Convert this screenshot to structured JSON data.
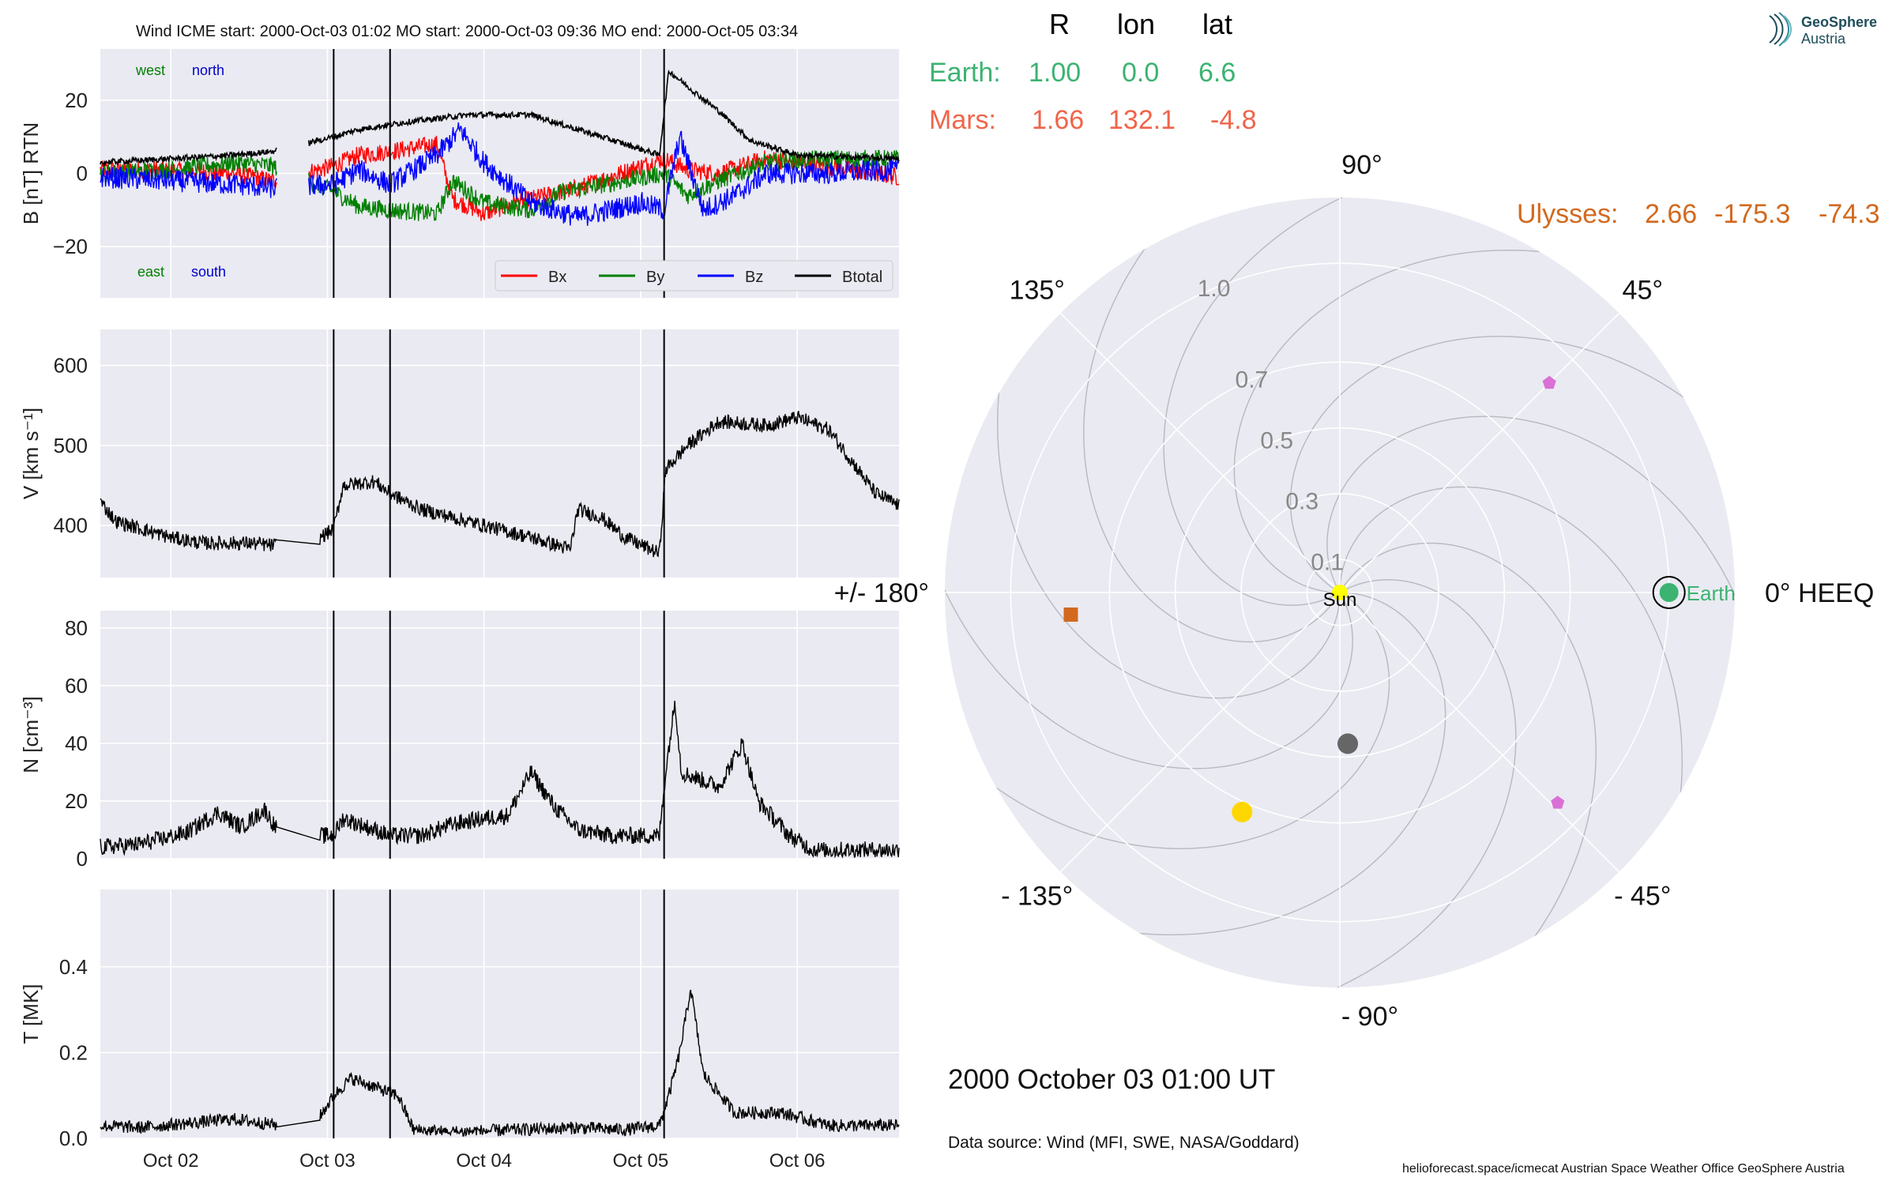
{
  "logo": {
    "line1": "GeoSphere",
    "line2": "Austria"
  },
  "header_text": "Wind    ICME start: 2000-Oct-03 01:02   MO start: 2000-Oct-03 09:36   MO end: 2000-Oct-05 03:34",
  "footer": {
    "date": "2000 October 03  01:00 UT",
    "source": "Data source: Wind (MFI, SWE, NASA/Goddard)",
    "credits": "helioforecast.space/icmecat   Austrian Space Weather Office   GeoSphere Austria"
  },
  "position_table": {
    "headers": [
      "R",
      "lon",
      "lat"
    ],
    "rows": [
      {
        "name": "Earth:",
        "r": "1.00",
        "lon": "0.0",
        "lat": "6.6",
        "color": "#3cb371"
      },
      {
        "name": "Mars:",
        "r": "1.66",
        "lon": "132.1",
        "lat": "-4.8",
        "color": "#f0654a"
      }
    ],
    "ulysses": {
      "name": "Ulysses:",
      "r": "2.66",
      "lon": "-175.3",
      "lat": "-74.3",
      "color": "#d2691e"
    }
  },
  "colors": {
    "bx": "#ff0000",
    "by": "#008000",
    "bz": "#0000ff",
    "btotal": "#000000",
    "panel_bg": "#eaeaf2",
    "grid": "#ffffff",
    "west": "#008000",
    "north": "#0000cc"
  },
  "chart_data": [
    {
      "type": "line",
      "ylabel": "B [nT] RTN",
      "ylim": [
        -34,
        34
      ],
      "yticks": [
        20,
        0,
        -20
      ],
      "ytick_labels": [
        "20",
        "0",
        "−20"
      ],
      "xlim": [
        1.55,
        6.65
      ],
      "x_unit": "day of October 2000",
      "corner_labels": {
        "west": "west",
        "north": "north",
        "east": "east",
        "south": "south"
      },
      "legend": [
        "Bx",
        "By",
        "Bz",
        "Btotal"
      ],
      "legend_placement": "lower-right",
      "event_lines_x": [
        3.04,
        3.4,
        5.15
      ],
      "series": [
        {
          "name": "Bx",
          "color": "#ff0000",
          "keypoints": [
            [
              1.55,
              1
            ],
            [
              2.0,
              1
            ],
            [
              2.4,
              0
            ],
            [
              2.65,
              -2
            ],
            [
              3.04,
              2
            ],
            [
              3.2,
              5
            ],
            [
              3.4,
              6
            ],
            [
              3.7,
              8
            ],
            [
              3.8,
              -7
            ],
            [
              4.0,
              -11
            ],
            [
              4.2,
              -8
            ],
            [
              4.6,
              -4
            ],
            [
              5.0,
              2
            ],
            [
              5.15,
              4
            ],
            [
              5.3,
              1
            ],
            [
              5.5,
              0
            ],
            [
              5.8,
              4
            ],
            [
              6.2,
              2
            ],
            [
              6.65,
              -1
            ]
          ],
          "amp": 2.5
        },
        {
          "name": "By",
          "color": "#008000",
          "keypoints": [
            [
              1.55,
              0
            ],
            [
              2.0,
              1
            ],
            [
              2.4,
              3
            ],
            [
              2.65,
              2
            ],
            [
              3.04,
              -5
            ],
            [
              3.2,
              -9
            ],
            [
              3.4,
              -10
            ],
            [
              3.7,
              -11
            ],
            [
              3.8,
              -2
            ],
            [
              4.0,
              -8
            ],
            [
              4.3,
              -10
            ],
            [
              4.5,
              -5
            ],
            [
              4.9,
              -2
            ],
            [
              5.15,
              0
            ],
            [
              5.3,
              -6
            ],
            [
              5.5,
              -2
            ],
            [
              5.8,
              3
            ],
            [
              6.2,
              4
            ],
            [
              6.65,
              4
            ]
          ],
          "amp": 2.5
        },
        {
          "name": "Bz",
          "color": "#0000ff",
          "keypoints": [
            [
              1.55,
              -1
            ],
            [
              2.0,
              -2
            ],
            [
              2.4,
              -3
            ],
            [
              2.65,
              -4
            ],
            [
              3.04,
              -3
            ],
            [
              3.2,
              1
            ],
            [
              3.4,
              -3
            ],
            [
              3.7,
              5
            ],
            [
              3.85,
              12
            ],
            [
              4.0,
              3
            ],
            [
              4.3,
              -8
            ],
            [
              4.6,
              -12
            ],
            [
              5.0,
              -8
            ],
            [
              5.15,
              -10
            ],
            [
              5.25,
              10
            ],
            [
              5.4,
              -10
            ],
            [
              5.6,
              -6
            ],
            [
              5.8,
              0
            ],
            [
              6.2,
              0
            ],
            [
              6.65,
              1
            ]
          ],
          "amp": 3.0
        },
        {
          "name": "Btotal",
          "color": "#000000",
          "keypoints": [
            [
              1.55,
              3
            ],
            [
              2.0,
              4
            ],
            [
              2.4,
              5
            ],
            [
              2.65,
              6
            ],
            [
              3.04,
              10
            ],
            [
              3.2,
              12
            ],
            [
              3.5,
              14
            ],
            [
              3.9,
              16
            ],
            [
              4.3,
              16
            ],
            [
              4.6,
              12
            ],
            [
              4.9,
              8
            ],
            [
              5.12,
              5
            ],
            [
              5.18,
              28
            ],
            [
              5.35,
              22
            ],
            [
              5.5,
              17
            ],
            [
              5.7,
              9
            ],
            [
              6.0,
              5
            ],
            [
              6.65,
              4
            ]
          ],
          "amp": 0.8
        }
      ]
    },
    {
      "type": "line",
      "ylabel": "V [km s⁻¹]",
      "ylim": [
        335,
        645
      ],
      "yticks": [
        600,
        500,
        400
      ],
      "ytick_labels": [
        "600",
        "500",
        "400"
      ],
      "xlim": [
        1.55,
        6.65
      ],
      "event_lines_x": [
        3.04,
        3.4,
        5.15
      ],
      "series": [
        {
          "name": "V",
          "color": "#000000",
          "keypoints": [
            [
              1.55,
              430
            ],
            [
              1.65,
              405
            ],
            [
              2.0,
              385
            ],
            [
              2.2,
              378
            ],
            [
              2.5,
              378
            ],
            [
              2.65,
              375
            ],
            [
              2.95,
              385
            ],
            [
              3.04,
              395
            ],
            [
              3.1,
              450
            ],
            [
              3.3,
              455
            ],
            [
              3.4,
              440
            ],
            [
              3.6,
              420
            ],
            [
              3.8,
              410
            ],
            [
              4.0,
              400
            ],
            [
              4.3,
              385
            ],
            [
              4.55,
              370
            ],
            [
              4.6,
              420
            ],
            [
              4.75,
              410
            ],
            [
              4.9,
              385
            ],
            [
              5.12,
              365
            ],
            [
              5.16,
              470
            ],
            [
              5.3,
              500
            ],
            [
              5.5,
              530
            ],
            [
              5.8,
              525
            ],
            [
              6.0,
              535
            ],
            [
              6.2,
              520
            ],
            [
              6.35,
              480
            ],
            [
              6.5,
              440
            ],
            [
              6.65,
              425
            ]
          ],
          "amp": 9
        }
      ]
    },
    {
      "type": "line",
      "ylabel": "N [cm⁻³]",
      "ylim": [
        0,
        86
      ],
      "yticks": [
        80,
        60,
        40,
        20,
        0
      ],
      "ytick_labels": [
        "80",
        "60",
        "40",
        "20",
        "0"
      ],
      "xlim": [
        1.55,
        6.65
      ],
      "event_lines_x": [
        3.04,
        3.4,
        5.15
      ],
      "series": [
        {
          "name": "N",
          "color": "#000000",
          "keypoints": [
            [
              1.55,
              4
            ],
            [
              1.8,
              5
            ],
            [
              2.1,
              9
            ],
            [
              2.3,
              16
            ],
            [
              2.45,
              11
            ],
            [
              2.6,
              17
            ],
            [
              2.7,
              8
            ],
            [
              3.04,
              8
            ],
            [
              3.1,
              14
            ],
            [
              3.3,
              10
            ],
            [
              3.4,
              8
            ],
            [
              3.6,
              8
            ],
            [
              3.8,
              12
            ],
            [
              4.0,
              14
            ],
            [
              4.15,
              15
            ],
            [
              4.3,
              30
            ],
            [
              4.45,
              18
            ],
            [
              4.6,
              10
            ],
            [
              4.8,
              8
            ],
            [
              5.12,
              8
            ],
            [
              5.16,
              30
            ],
            [
              5.22,
              55
            ],
            [
              5.26,
              30
            ],
            [
              5.5,
              25
            ],
            [
              5.65,
              40
            ],
            [
              5.75,
              20
            ],
            [
              5.95,
              8
            ],
            [
              6.1,
              3
            ],
            [
              6.65,
              3
            ]
          ],
          "amp": 3
        }
      ]
    },
    {
      "type": "line",
      "ylabel": "T [MK]",
      "ylim": [
        0,
        0.58
      ],
      "yticks": [
        0.4,
        0.2,
        0.0
      ],
      "ytick_labels": [
        "0.4",
        "0.2",
        "0.0"
      ],
      "xlim": [
        1.55,
        6.65
      ],
      "x_tick_labels": [
        "Oct 02",
        "Oct 03",
        "Oct 04",
        "Oct 05",
        "Oct 06"
      ],
      "x_ticks": [
        2,
        3,
        4,
        5,
        6
      ],
      "event_lines_x": [
        3.04,
        3.4,
        5.15
      ],
      "series": [
        {
          "name": "T",
          "color": "#000000",
          "keypoints": [
            [
              1.55,
              0.03
            ],
            [
              1.8,
              0.025
            ],
            [
              2.1,
              0.035
            ],
            [
              2.4,
              0.045
            ],
            [
              2.7,
              0.03
            ],
            [
              2.95,
              0.05
            ],
            [
              3.04,
              0.1
            ],
            [
              3.15,
              0.14
            ],
            [
              3.3,
              0.12
            ],
            [
              3.45,
              0.1
            ],
            [
              3.55,
              0.02
            ],
            [
              3.8,
              0.015
            ],
            [
              4.2,
              0.02
            ],
            [
              4.6,
              0.025
            ],
            [
              4.9,
              0.02
            ],
            [
              5.12,
              0.03
            ],
            [
              5.18,
              0.1
            ],
            [
              5.25,
              0.2
            ],
            [
              5.32,
              0.35
            ],
            [
              5.4,
              0.15
            ],
            [
              5.6,
              0.06
            ],
            [
              5.9,
              0.06
            ],
            [
              6.2,
              0.03
            ],
            [
              6.65,
              0.03
            ]
          ],
          "amp": 0.015
        }
      ]
    },
    {
      "type": "scatter",
      "subtype": "polar",
      "theta_labels": [
        {
          "angle": 90,
          "label": "90°"
        },
        {
          "angle": 45,
          "label": "45°"
        },
        {
          "angle": 0,
          "label": "0° HEEQ"
        },
        {
          "angle": -45,
          "label": "- 45°"
        },
        {
          "angle": -90,
          "label": "- 90°"
        },
        {
          "angle": -135,
          "label": "- 135°"
        },
        {
          "angle": 180,
          "label": "+/- 180°"
        },
        {
          "angle": 135,
          "label": "135°"
        }
      ],
      "radial_ticks": [
        0.1,
        0.3,
        0.5,
        0.7,
        1.0
      ],
      "radial_tick_labels": [
        "0.1",
        "0.3",
        "0.5",
        "0.7",
        "1.0"
      ],
      "r_max": 1.2,
      "grid": true,
      "spiral_count": 12,
      "bodies": [
        {
          "name": "Sun",
          "r": 0.0,
          "theta": 0,
          "marker": "circle",
          "color": "#ffff00"
        },
        {
          "name": "Earth",
          "r": 1.0,
          "theta": 0,
          "marker": "circle-ringed",
          "color": "#3cb371"
        },
        {
          "name": "Ulysses",
          "r": 0.82,
          "theta": -175.3,
          "marker": "square",
          "color": "#d2691e"
        },
        {
          "name": "Mercury",
          "r": 0.46,
          "theta": -87,
          "marker": "circle",
          "color": "#666666"
        },
        {
          "name": "Venus",
          "r": 0.73,
          "theta": -114,
          "marker": "circle",
          "color": "#ffd700"
        },
        {
          "name": "Spacecraft A",
          "r": 0.9,
          "theta": 45,
          "marker": "pentagon",
          "color": "#da70d6"
        },
        {
          "name": "Spacecraft B",
          "r": 0.92,
          "theta": -44,
          "marker": "pentagon",
          "color": "#da70d6"
        }
      ]
    }
  ]
}
